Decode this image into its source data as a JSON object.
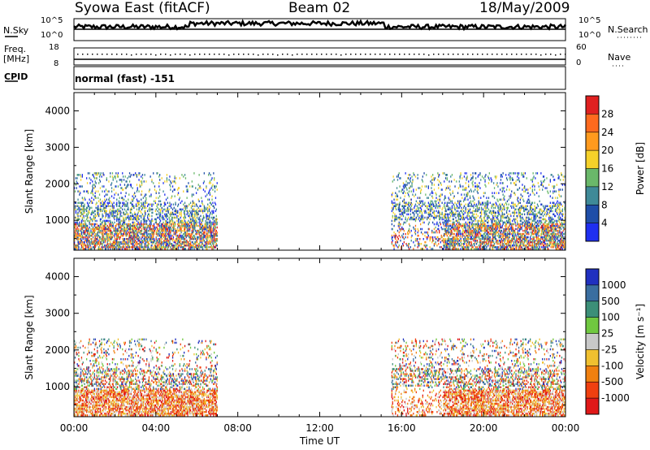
{
  "header": {
    "radar": "Syowa East (fitACF)",
    "beam": "Beam 02",
    "date": "18/May/2009"
  },
  "top_panels": {
    "nsky_label": "N.Sky",
    "nsky_ticks": [
      "10^5",
      "10^0"
    ],
    "nsearch_label": "N.Search",
    "nsearch_ticks": [
      "10^5",
      "10^0"
    ],
    "freq_label_line1": "Freq.",
    "freq_label_line2": "[MHz]",
    "freq_ticks": [
      "18",
      "8"
    ],
    "nave_label": "Nave",
    "nave_ticks": [
      "60",
      "0"
    ],
    "cpid_label": "CPID",
    "cpid_value": "normal (fast) -151"
  },
  "colors": {
    "power_scale": [
      "#1f2ff0",
      "#1f4ea8",
      "#3f8a98",
      "#6ab86a",
      "#f5d12a",
      "#ff9a1e",
      "#ff6a1e",
      "#e02020"
    ],
    "velocity_scale": [
      "#2030c0",
      "#3a6ea0",
      "#3c8f78",
      "#70c840",
      "#c8c8c8",
      "#f0c030",
      "#f08010",
      "#f04010",
      "#e01818"
    ]
  },
  "chart_data": [
    {
      "type": "heatmap",
      "title": "Power",
      "ylabel": "Slant Range [km]",
      "xlabel": "",
      "x_ticks": [
        "00:00",
        "04:00",
        "08:00",
        "12:00",
        "16:00",
        "20:00",
        "00:00"
      ],
      "y_ticks": [
        "1000",
        "2000",
        "3000",
        "4000"
      ],
      "xlim_hours": [
        0,
        24
      ],
      "ylim_km": [
        180,
        4500
      ],
      "colorbar_label": "Power [dB]",
      "colorbar_ticks": [
        "4",
        "8",
        "12",
        "16",
        "20",
        "24",
        "28"
      ],
      "colorbar_range": [
        0,
        32
      ],
      "echo_regions": [
        {
          "t_start": 0.0,
          "t_end": 7.0,
          "r_min": 200,
          "r_max": 2300,
          "level": "mixed"
        },
        {
          "t_start": 15.5,
          "t_end": 24.0,
          "r_min": 200,
          "r_max": 2300,
          "level": "mixed"
        }
      ]
    },
    {
      "type": "heatmap",
      "title": "Velocity",
      "ylabel": "Slant Range [km]",
      "xlabel": "Time UT",
      "x_ticks": [
        "00:00",
        "04:00",
        "08:00",
        "12:00",
        "16:00",
        "20:00",
        "00:00"
      ],
      "y_ticks": [
        "1000",
        "2000",
        "3000",
        "4000"
      ],
      "xlim_hours": [
        0,
        24
      ],
      "ylim_km": [
        180,
        4500
      ],
      "colorbar_label": "Velocity [m s⁻¹]",
      "colorbar_ticks": [
        "1000",
        "500",
        "100",
        "25",
        "-25",
        "-100",
        "-500",
        "-1000"
      ],
      "echo_regions": [
        {
          "t_start": 0.0,
          "t_end": 7.0,
          "r_min": 200,
          "r_max": 2300,
          "level": "mixed"
        },
        {
          "t_start": 15.5,
          "t_end": 24.0,
          "r_min": 200,
          "r_max": 2300,
          "level": "mixed"
        }
      ]
    }
  ]
}
